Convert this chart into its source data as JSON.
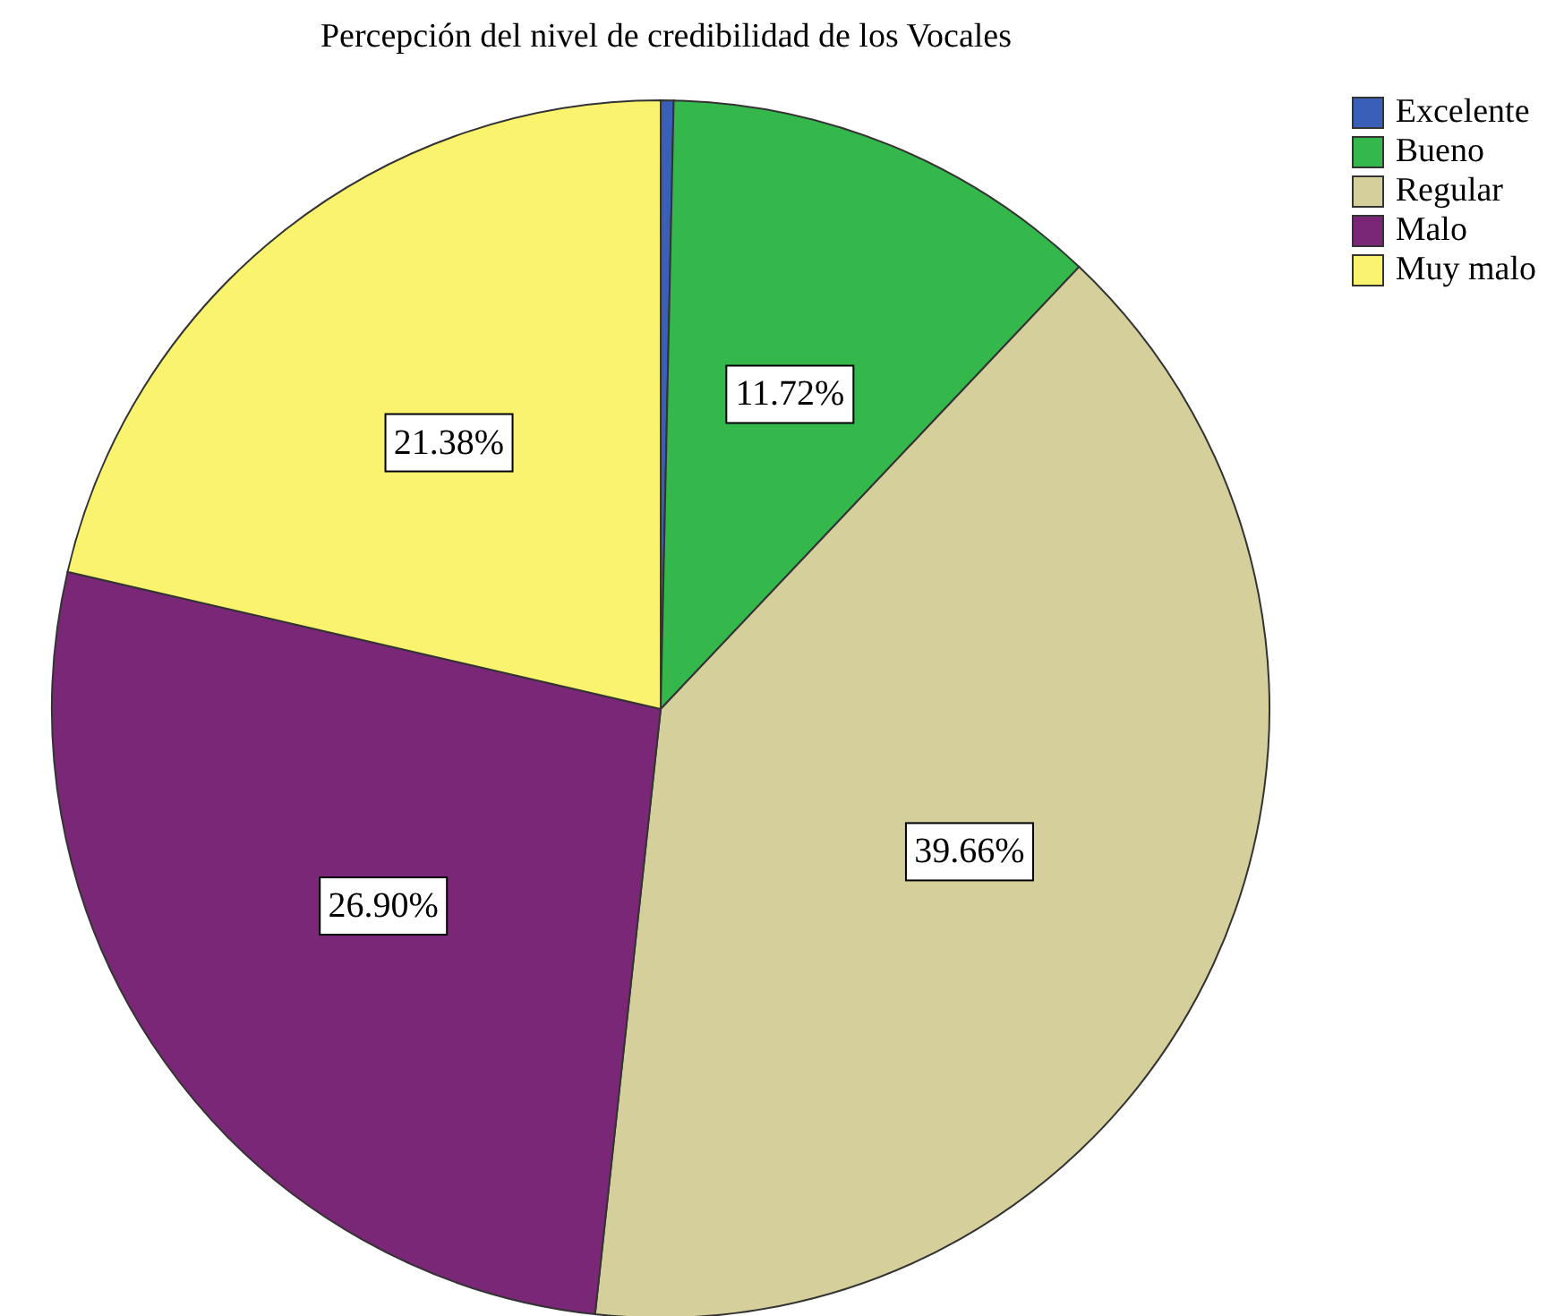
{
  "chart_data": {
    "type": "pie",
    "title": "Percepción del nivel de credibilidad de los Vocales",
    "categories": [
      "Excelente",
      "Bueno",
      "Regular",
      "Malo",
      "Muy malo"
    ],
    "values": [
      0.34,
      11.72,
      39.66,
      26.9,
      21.38
    ],
    "colors": [
      "#3a5fb8",
      "#34b84c",
      "#d4cf9b",
      "#7b2777",
      "#f9f36e"
    ],
    "value_labels": [
      null,
      "11.72%",
      "39.66%",
      "26.90%",
      "21.38%"
    ],
    "legend": "top right"
  }
}
